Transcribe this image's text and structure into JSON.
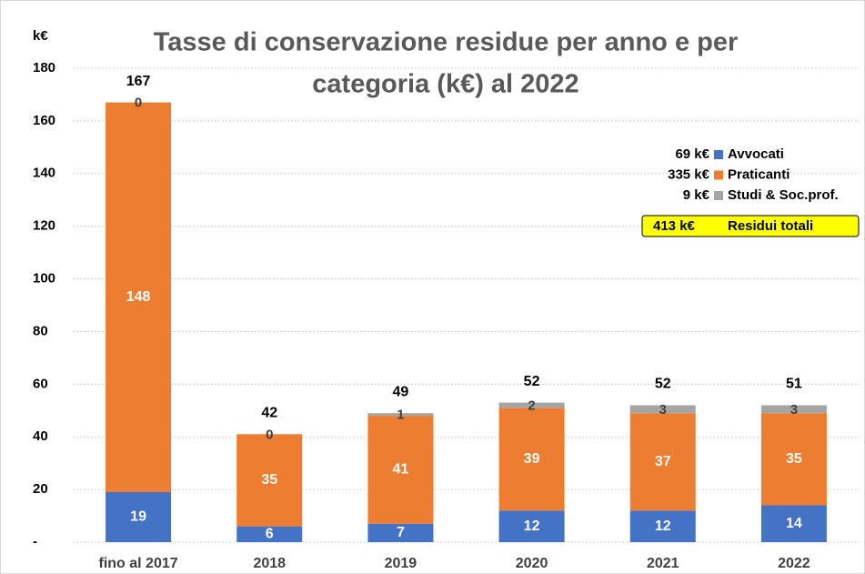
{
  "chart_data": {
    "type": "stacked_bar",
    "title_lines": [
      "Tasse di conservazione residue per anno e per",
      "categoria (k€) al 2022"
    ],
    "y_axis_label": "k€",
    "categories": [
      "fino al 2017",
      "2018",
      "2019",
      "2020",
      "2021",
      "2022"
    ],
    "series": [
      {
        "name": "Avvocati",
        "color": "#4472c4",
        "values": [
          19,
          6,
          7,
          12,
          12,
          14
        ],
        "legend_total": "69 k€"
      },
      {
        "name": "Praticanti",
        "color": "#ed7d31",
        "values": [
          148,
          35,
          41,
          39,
          37,
          35
        ],
        "legend_total": "335 k€"
      },
      {
        "name": "Studi & Soc.prof.",
        "color": "#a5a5a5",
        "values": [
          0,
          0,
          1,
          2,
          3,
          3
        ],
        "legend_total": "9 k€"
      }
    ],
    "totals": [
      167,
      42,
      49,
      52,
      52,
      51
    ],
    "grand_total": {
      "value_label": "413 k€",
      "label": "Residui totali"
    },
    "ylim": [
      0,
      180
    ],
    "yticks": [
      {
        "value": 0,
        "label": "-"
      },
      20,
      40,
      60,
      80,
      100,
      120,
      140,
      160,
      180
    ],
    "grid": true
  }
}
